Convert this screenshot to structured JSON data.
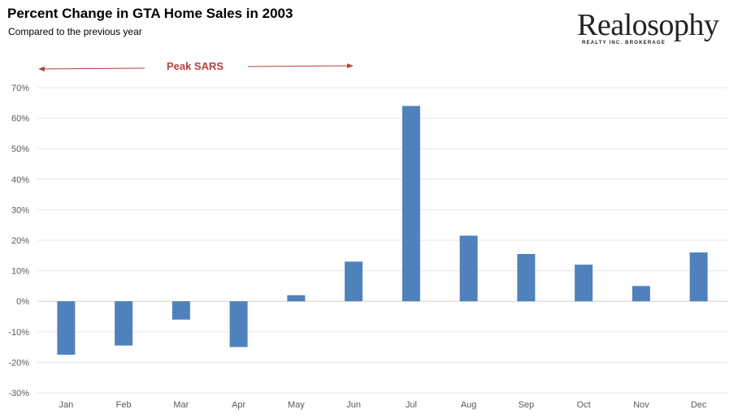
{
  "logo": {
    "name": "Realosophy",
    "tagline": "REALTY INC. BROKERAGE"
  },
  "annotation": {
    "text": "Peak SARS",
    "color": "#b5403d"
  },
  "chart_data": {
    "type": "bar",
    "title": "Percent Change in GTA Home Sales in 2003",
    "subtitle": "Compared to the previous year",
    "xlabel": "",
    "ylabel": "",
    "categories": [
      "Jan",
      "Feb",
      "Mar",
      "Apr",
      "May",
      "Jun",
      "Jul",
      "Aug",
      "Sep",
      "Oct",
      "Nov",
      "Dec"
    ],
    "series": [
      {
        "values": [
          -17.5,
          -14.5,
          -6,
          -15,
          2,
          13,
          64,
          21.5,
          15.5,
          12,
          5,
          16
        ],
        "color": "#4f81bd"
      }
    ],
    "ylim": [
      -30,
      70
    ],
    "yticks": [
      70,
      60,
      50,
      40,
      30,
      20,
      10,
      0,
      -10,
      -20,
      -30
    ],
    "ytick_labels": [
      "70%",
      "60%",
      "50%",
      "40%",
      "30%",
      "20%",
      "10%",
      "0%",
      "-10%",
      "-20%",
      "-30%"
    ],
    "grid": true,
    "legend": "none"
  }
}
